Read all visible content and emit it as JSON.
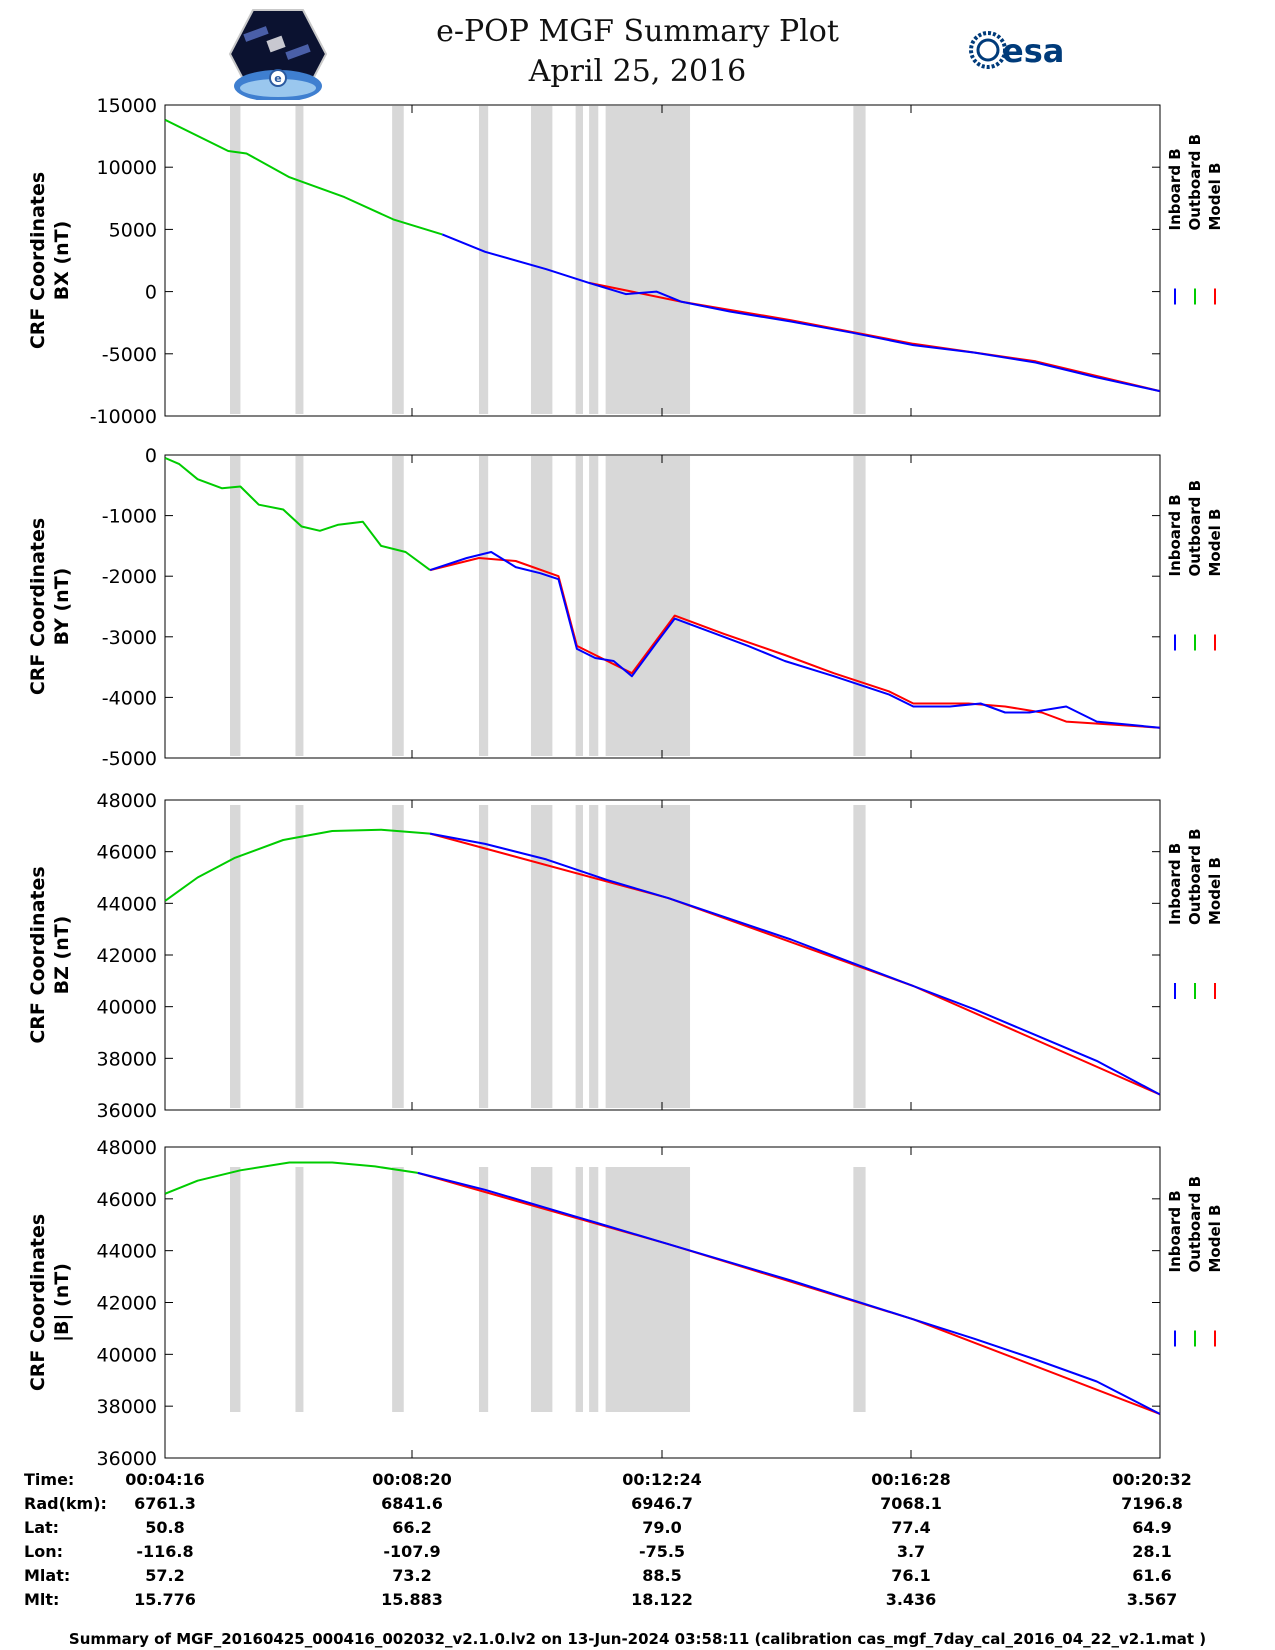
{
  "header": {
    "title_line1": "e-POP MGF Summary Plot",
    "title_line2": "April 25, 2016",
    "mission_logo_icon": "epop-satellite-logo",
    "agency_logo_text": "esa",
    "agency_logo_icon": "esa-logo"
  },
  "legend": {
    "labels": [
      "Inboard B",
      "Outboard B",
      "Model B"
    ],
    "colors": [
      "#0000ff",
      "#00cc00",
      "#ff0000"
    ]
  },
  "colors": {
    "gap": "#d8d8d8",
    "inboard": "#0000ff",
    "outboard": "#00cc00",
    "model": "#ff0000"
  },
  "chart_data": [
    {
      "type": "line",
      "ylabel_line1": "CRF Coordinates",
      "ylabel_line2": "BX (nT)",
      "ylim": [
        -10000,
        15000
      ],
      "yticks": [
        15000,
        10000,
        5000,
        0,
        -5000,
        -10000
      ],
      "ytick_labels": [
        "15000",
        "10000",
        "5000",
        "0",
        "-5000",
        "-10000"
      ],
      "xlim_minutes": [
        4.267,
        20.533
      ],
      "series": [
        {
          "name": "Outboard B",
          "x": [
            4.27,
            5.3,
            5.6,
            6.3,
            7.2,
            8.0,
            8.8
          ],
          "values": [
            13800,
            11300,
            11100,
            9200,
            7600,
            5800,
            4600
          ]
        },
        {
          "name": "Inboard B",
          "x": [
            8.8,
            9.5,
            10.5,
            11.2,
            11.8,
            12.3,
            12.7,
            13.5,
            14.5,
            15.5,
            16.5,
            17.5,
            18.5,
            19.5,
            20.53
          ],
          "values": [
            4600,
            3200,
            1800,
            700,
            -200,
            0,
            -800,
            -1600,
            -2400,
            -3300,
            -4300,
            -4900,
            -5700,
            -6900,
            -8000
          ]
        },
        {
          "name": "Model B",
          "x": [
            11.2,
            12.7,
            14.5,
            16.5,
            18.5,
            20.53
          ],
          "values": [
            700,
            -800,
            -2300,
            -4200,
            -5600,
            -8000
          ]
        }
      ]
    },
    {
      "type": "line",
      "ylabel_line1": "CRF Coordinates",
      "ylabel_line2": "BY (nT)",
      "ylim": [
        -5000,
        0
      ],
      "yticks": [
        0,
        -1000,
        -2000,
        -3000,
        -4000,
        -5000
      ],
      "ytick_labels": [
        "0",
        "-1000",
        "-2000",
        "-3000",
        "-4000",
        "-5000"
      ],
      "xlim_minutes": [
        4.267,
        20.533
      ],
      "series": [
        {
          "name": "Outboard B",
          "x": [
            4.27,
            4.5,
            4.8,
            5.2,
            5.5,
            5.8,
            6.2,
            6.5,
            6.8,
            7.1,
            7.5,
            7.8,
            8.2,
            8.6
          ],
          "values": [
            -50,
            -150,
            -400,
            -550,
            -520,
            -820,
            -900,
            -1180,
            -1250,
            -1150,
            -1100,
            -1500,
            -1600,
            -1900
          ]
        },
        {
          "name": "Inboard B",
          "x": [
            8.6,
            9.2,
            9.6,
            10.0,
            10.4,
            10.7,
            11.0,
            11.3,
            11.6,
            11.9,
            12.3,
            12.6,
            13.0,
            13.4,
            13.8,
            14.4,
            15.2,
            16.1,
            16.5,
            17.1,
            17.6,
            18.0,
            18.4,
            19.0,
            19.5,
            20.53
          ],
          "values": [
            -1900,
            -1700,
            -1600,
            -1850,
            -1950,
            -2050,
            -3200,
            -3350,
            -3400,
            -3650,
            -3100,
            -2700,
            -2850,
            -3000,
            -3150,
            -3400,
            -3650,
            -3950,
            -4150,
            -4150,
            -4100,
            -4250,
            -4250,
            -4150,
            -4400,
            -4500
          ]
        },
        {
          "name": "Model B",
          "x": [
            8.6,
            9.4,
            10.0,
            10.7,
            11.0,
            11.3,
            11.9,
            12.6,
            13.4,
            14.4,
            15.2,
            16.1,
            16.5,
            17.4,
            18.0,
            18.6,
            19.0,
            20.53
          ],
          "values": [
            -1900,
            -1700,
            -1750,
            -2000,
            -3150,
            -3300,
            -3600,
            -2650,
            -2950,
            -3300,
            -3600,
            -3900,
            -4100,
            -4100,
            -4150,
            -4250,
            -4400,
            -4500
          ]
        }
      ]
    },
    {
      "type": "line",
      "ylabel_line1": "CRF Coordinates",
      "ylabel_line2": "BZ (nT)",
      "ylim": [
        36000,
        48000
      ],
      "yticks": [
        48000,
        46000,
        44000,
        42000,
        40000,
        38000,
        36000
      ],
      "ytick_labels": [
        "48000",
        "46000",
        "44000",
        "42000",
        "40000",
        "38000",
        "36000"
      ],
      "xlim_minutes": [
        4.267,
        20.533
      ],
      "series": [
        {
          "name": "Outboard B",
          "x": [
            4.27,
            4.8,
            5.4,
            6.2,
            7.0,
            7.8,
            8.6
          ],
          "values": [
            44100,
            45000,
            45750,
            46450,
            46800,
            46850,
            46700
          ]
        },
        {
          "name": "Inboard B",
          "x": [
            8.6,
            9.5,
            10.5,
            11.5,
            12.5,
            13.5,
            14.5,
            15.5,
            16.5,
            17.5,
            18.5,
            19.5,
            20.53
          ],
          "values": [
            46700,
            46300,
            45700,
            44900,
            44200,
            43400,
            42600,
            41700,
            40800,
            39900,
            38900,
            37900,
            36600
          ]
        },
        {
          "name": "Model B",
          "x": [
            8.6,
            12.5,
            16.5,
            20.53
          ],
          "values": [
            46700,
            44200,
            40800,
            36600
          ]
        }
      ]
    },
    {
      "type": "line",
      "ylabel_line1": "CRF Coordinates",
      "ylabel_line2": "|B| (nT)",
      "ylim": [
        36000,
        48000
      ],
      "yticks": [
        48000,
        46000,
        44000,
        42000,
        40000,
        38000,
        36000
      ],
      "ytick_labels": [
        "48000",
        "46000",
        "44000",
        "42000",
        "40000",
        "38000",
        "36000"
      ],
      "xlim_minutes": [
        4.267,
        20.533
      ],
      "series": [
        {
          "name": "Outboard B",
          "x": [
            4.27,
            4.8,
            5.5,
            6.3,
            7.0,
            7.7,
            8.4
          ],
          "values": [
            46200,
            46700,
            47100,
            47400,
            47400,
            47250,
            47000
          ]
        },
        {
          "name": "Inboard B",
          "x": [
            8.4,
            9.5,
            10.5,
            11.5,
            12.5,
            13.5,
            14.5,
            15.5,
            16.5,
            17.5,
            18.5,
            19.5,
            20.53
          ],
          "values": [
            47000,
            46350,
            45650,
            44950,
            44250,
            43550,
            42850,
            42100,
            41350,
            40600,
            39800,
            38950,
            37700
          ]
        },
        {
          "name": "Model B",
          "x": [
            8.4,
            12.5,
            16.5,
            20.53
          ],
          "values": [
            47000,
            44250,
            41350,
            37700
          ]
        }
      ]
    }
  ],
  "gaps_minutes": [
    [
      5.33,
      5.5
    ],
    [
      6.4,
      6.53
    ],
    [
      7.98,
      8.17
    ],
    [
      9.4,
      9.55
    ],
    [
      10.25,
      10.6
    ],
    [
      10.98,
      11.1
    ],
    [
      11.2,
      11.35
    ],
    [
      11.47,
      12.85
    ],
    [
      15.52,
      15.72
    ]
  ],
  "gap_ranges_by_panel": [
    [
      0,
      1,
      2
    ],
    [
      0,
      1,
      2
    ],
    [
      0,
      1,
      2
    ],
    [
      0,
      1,
      2
    ]
  ],
  "ephemeris": {
    "row_labels": [
      "Time:",
      "Rad(km):",
      "Lat:",
      "Lon:",
      "Mlat:",
      "Mlt:"
    ],
    "columns": [
      [
        "00:04:16",
        "6761.3",
        "50.8",
        "-116.8",
        "57.2",
        "15.776"
      ],
      [
        "00:08:20",
        "6841.6",
        "66.2",
        "-107.9",
        "73.2",
        "15.883"
      ],
      [
        "00:12:24",
        "6946.7",
        "79.0",
        "-75.5",
        "88.5",
        "18.122"
      ],
      [
        "00:16:28",
        "7068.1",
        "77.4",
        "3.7",
        "76.1",
        "3.436"
      ],
      [
        "00:20:32",
        "7196.8",
        "64.9",
        "28.1",
        "61.6",
        "3.567"
      ]
    ]
  },
  "footer": {
    "text": "Summary of MGF_20160425_000416_002032_v2.1.0.lv2 on 13-Jun-2024 03:58:11 (calibration cas_mgf_7day_cal_2016_04_22_v2.1.mat )"
  }
}
